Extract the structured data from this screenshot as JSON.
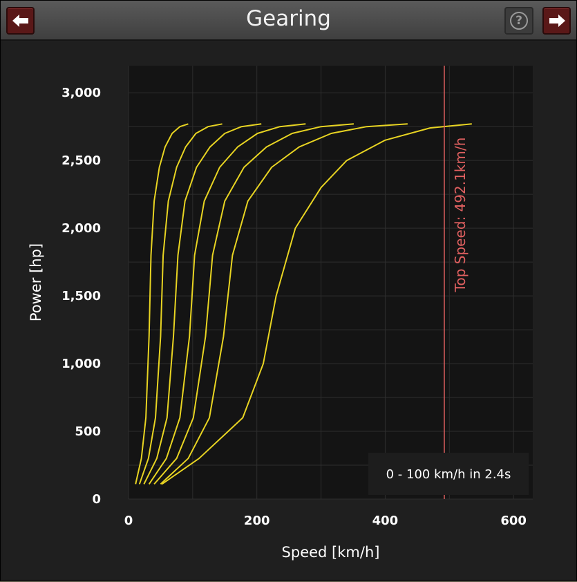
{
  "window": {
    "title": "Gearing",
    "back_icon": "arrow-left-icon",
    "forward_icon": "arrow-right-icon",
    "help_icon": "help-icon",
    "help_glyph": "?"
  },
  "chart_data": {
    "type": "line",
    "xlabel": "Speed [km/h]",
    "ylabel": "Power [hp]",
    "xlim": [
      0,
      630
    ],
    "ylim": [
      0,
      3200
    ],
    "x_ticks": [
      0,
      200,
      400,
      600
    ],
    "x_tick_labels": [
      "0",
      "200",
      "400",
      "600"
    ],
    "y_ticks": [
      0,
      500,
      1000,
      1500,
      2000,
      2500,
      3000
    ],
    "y_tick_labels": [
      "0",
      "500",
      "1,000",
      "1,500",
      "2,000",
      "2,500",
      "3,000"
    ],
    "grid": true,
    "series_color": "#e8d422",
    "series": [
      {
        "x": [
          11,
          20,
          27,
          32,
          35,
          40,
          48,
          57,
          68,
          80,
          93
        ],
        "y": [
          110,
          300,
          600,
          1200,
          1800,
          2200,
          2450,
          2600,
          2700,
          2750,
          2770
        ]
      },
      {
        "x": [
          17,
          31,
          42,
          50,
          54,
          62,
          75,
          89,
          105,
          124,
          146
        ],
        "y": [
          110,
          300,
          600,
          1200,
          1800,
          2200,
          2450,
          2600,
          2700,
          2750,
          2770
        ]
      },
      {
        "x": [
          24,
          44,
          60,
          70,
          77,
          88,
          106,
          127,
          150,
          176,
          207
        ],
        "y": [
          110,
          300,
          600,
          1200,
          1800,
          2200,
          2450,
          2600,
          2700,
          2750,
          2770
        ]
      },
      {
        "x": [
          32,
          59,
          80,
          95,
          103,
          118,
          142,
          170,
          201,
          236,
          276
        ],
        "y": [
          110,
          300,
          600,
          1200,
          1800,
          2200,
          2450,
          2600,
          2700,
          2750,
          2770
        ]
      },
      {
        "x": [
          40,
          75,
          101,
          120,
          131,
          150,
          180,
          215,
          255,
          300,
          351
        ],
        "y": [
          110,
          300,
          600,
          1200,
          1800,
          2200,
          2450,
          2600,
          2700,
          2750,
          2770
        ]
      },
      {
        "x": [
          50,
          93,
          126,
          148,
          162,
          186,
          223,
          266,
          316,
          371,
          435
        ],
        "y": [
          110,
          300,
          600,
          1200,
          1800,
          2200,
          2450,
          2600,
          2700,
          2750,
          2770
        ]
      },
      {
        "x": [
          52,
          110,
          178,
          210,
          230,
          260,
          300,
          340,
          400,
          470,
          535
        ],
        "y": [
          110,
          300,
          600,
          1000,
          1500,
          2000,
          2300,
          2500,
          2650,
          2740,
          2770
        ]
      }
    ],
    "top_speed": {
      "x": 492.1,
      "label": "Top Speed: 492.1km/h",
      "color": "#e06060"
    },
    "annotation": "0 - 100 km/h in 2.4s"
  }
}
